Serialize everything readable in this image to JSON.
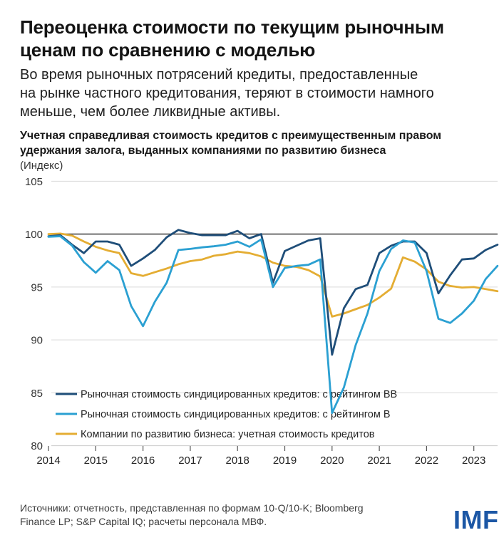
{
  "header": {
    "title_line1": "Переоценка стоимости по текущим рыночным",
    "title_line2": "ценам по сравнению с моделью",
    "subtitle_line1": "Во время рыночных потрясений кредиты, предоставленные",
    "subtitle_line2": "на рынке частного кредитования, теряют в стоимости намного",
    "subtitle_line3": "меньше, чем более ликвидные активы."
  },
  "chart": {
    "heading_line1": "Учетная справедливая стоимость кредитов с преимущественным правом",
    "heading_line2": "удержания залога, выданных компаниями по развитию бизнеса",
    "unit_label": "(Индекс)",
    "y_ticks": [
      "105",
      "100",
      "95",
      "90",
      "85",
      "80"
    ],
    "x_ticks": [
      "2014",
      "2015",
      "2016",
      "2017",
      "2018",
      "2019",
      "2020",
      "2021",
      "2022",
      "2023"
    ]
  },
  "chart_data": {
    "type": "line",
    "x_start": 2014.0,
    "x_step": 0.25,
    "x_axis_years": [
      2014,
      2015,
      2016,
      2017,
      2018,
      2019,
      2020,
      2021,
      2022,
      2023
    ],
    "ylim": [
      80,
      105
    ],
    "grid_values": [
      105,
      95,
      90,
      85,
      80
    ],
    "reference_line_y": 100,
    "legend_position": "bottom-left-inside",
    "series": [
      {
        "name": "Рыночная стоимость синдицированных кредитов: с рейтингом BB",
        "color": "#1f4e79",
        "values": [
          99.8,
          99.9,
          99.0,
          98.2,
          99.3,
          99.3,
          99.0,
          97.0,
          97.7,
          98.5,
          99.7,
          100.4,
          100.1,
          99.9,
          99.9,
          99.9,
          100.3,
          99.6,
          100.0,
          95.4,
          98.4,
          98.9,
          99.4,
          99.6,
          88.6,
          93.0,
          94.8,
          95.2,
          98.2,
          98.9,
          99.3,
          99.3,
          98.2,
          94.4,
          96.1,
          97.6,
          97.7,
          98.5,
          99.0
        ]
      },
      {
        "name": "Рыночная стоимость синдицированных кредитов: с рейтингом B",
        "color": "#2ba0d2",
        "values": [
          99.75,
          99.8,
          98.9,
          97.35,
          96.35,
          97.45,
          96.6,
          93.2,
          91.3,
          93.6,
          95.4,
          98.5,
          98.6,
          98.75,
          98.85,
          99.0,
          99.3,
          98.8,
          99.5,
          95.0,
          96.8,
          97.0,
          97.1,
          97.6,
          83.1,
          85.5,
          89.5,
          92.5,
          96.5,
          98.6,
          99.4,
          99.2,
          96.5,
          92.0,
          91.6,
          92.5,
          93.7,
          95.75,
          97.0
        ]
      },
      {
        "name": "Компании по развитию бизнеса: учетная стоимость кредитов",
        "color": "#e4ad33",
        "values": [
          100.0,
          100.05,
          99.85,
          99.3,
          98.8,
          98.45,
          98.2,
          96.3,
          96.05,
          96.4,
          96.75,
          97.15,
          97.45,
          97.6,
          97.95,
          98.1,
          98.35,
          98.2,
          97.9,
          97.3,
          97.0,
          96.9,
          96.6,
          96.0,
          92.2,
          92.5,
          92.9,
          93.3,
          94.0,
          94.85,
          97.8,
          97.4,
          96.65,
          95.5,
          95.1,
          94.95,
          95.0,
          94.8,
          94.6
        ]
      }
    ]
  },
  "colors": {
    "grid": "#d9d9d9",
    "bottom_grid": "#cccccc",
    "reference_line": "#4a4a4a",
    "tick_mark": "#555555",
    "logo_blue": "#1c57a5"
  },
  "footer": {
    "source_line1": "Источники: отчетность, представленная по формам 10-Q/10-K; Bloomberg",
    "source_line2": "Finance LP; S&P Capital IQ; расчеты персонала МВФ.",
    "logo_text": "IMF"
  }
}
